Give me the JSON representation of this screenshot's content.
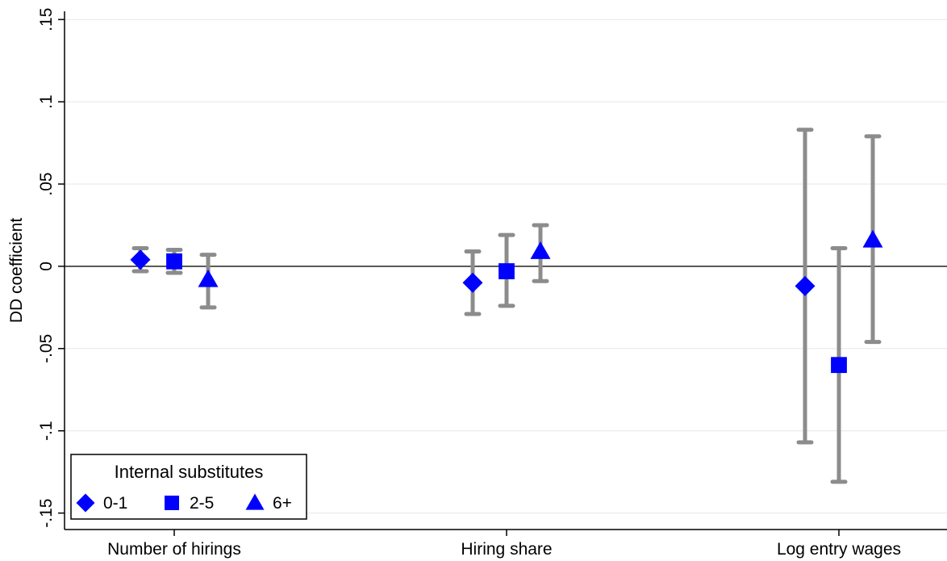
{
  "chart_data": {
    "type": "scatter",
    "subtype": "coefficient-plot-with-confidence-intervals",
    "title": "",
    "xlabel": "",
    "ylabel": "DD coefficient",
    "categories": [
      "Number of hirings",
      "Hiring share",
      "Log entry wages"
    ],
    "ylim": [
      -0.16,
      0.155
    ],
    "yticks": [
      -0.15,
      -0.1,
      -0.05,
      0,
      0.05,
      0.1,
      0.15
    ],
    "ytick_labels": [
      "-.15",
      "-.1",
      "-.05",
      "0",
      ".05",
      ".1",
      ".15"
    ],
    "grid": true,
    "zero_line": true,
    "legend": {
      "title": "Internal substitutes",
      "position": "bottom-left"
    },
    "series": [
      {
        "name": "0-1",
        "marker": "diamond",
        "values": [
          0.004,
          -0.01,
          -0.012
        ],
        "ci_low": [
          -0.003,
          -0.029,
          -0.107
        ],
        "ci_high": [
          0.011,
          0.009,
          0.083
        ]
      },
      {
        "name": "2-5",
        "marker": "square",
        "values": [
          0.003,
          -0.003,
          -0.06
        ],
        "ci_low": [
          -0.004,
          -0.024,
          -0.131
        ],
        "ci_high": [
          0.01,
          0.019,
          0.011
        ]
      },
      {
        "name": "6+",
        "marker": "triangle",
        "values": [
          -0.008,
          0.009,
          0.016
        ],
        "ci_low": [
          -0.025,
          -0.009,
          -0.046
        ],
        "ci_high": [
          0.007,
          0.025,
          0.079
        ]
      }
    ]
  },
  "colors": {
    "marker": "#0000ff",
    "ci": "#8c8c8c",
    "grid": "#e6e6e6",
    "axis": "#000000",
    "zero_line": "#333333"
  }
}
